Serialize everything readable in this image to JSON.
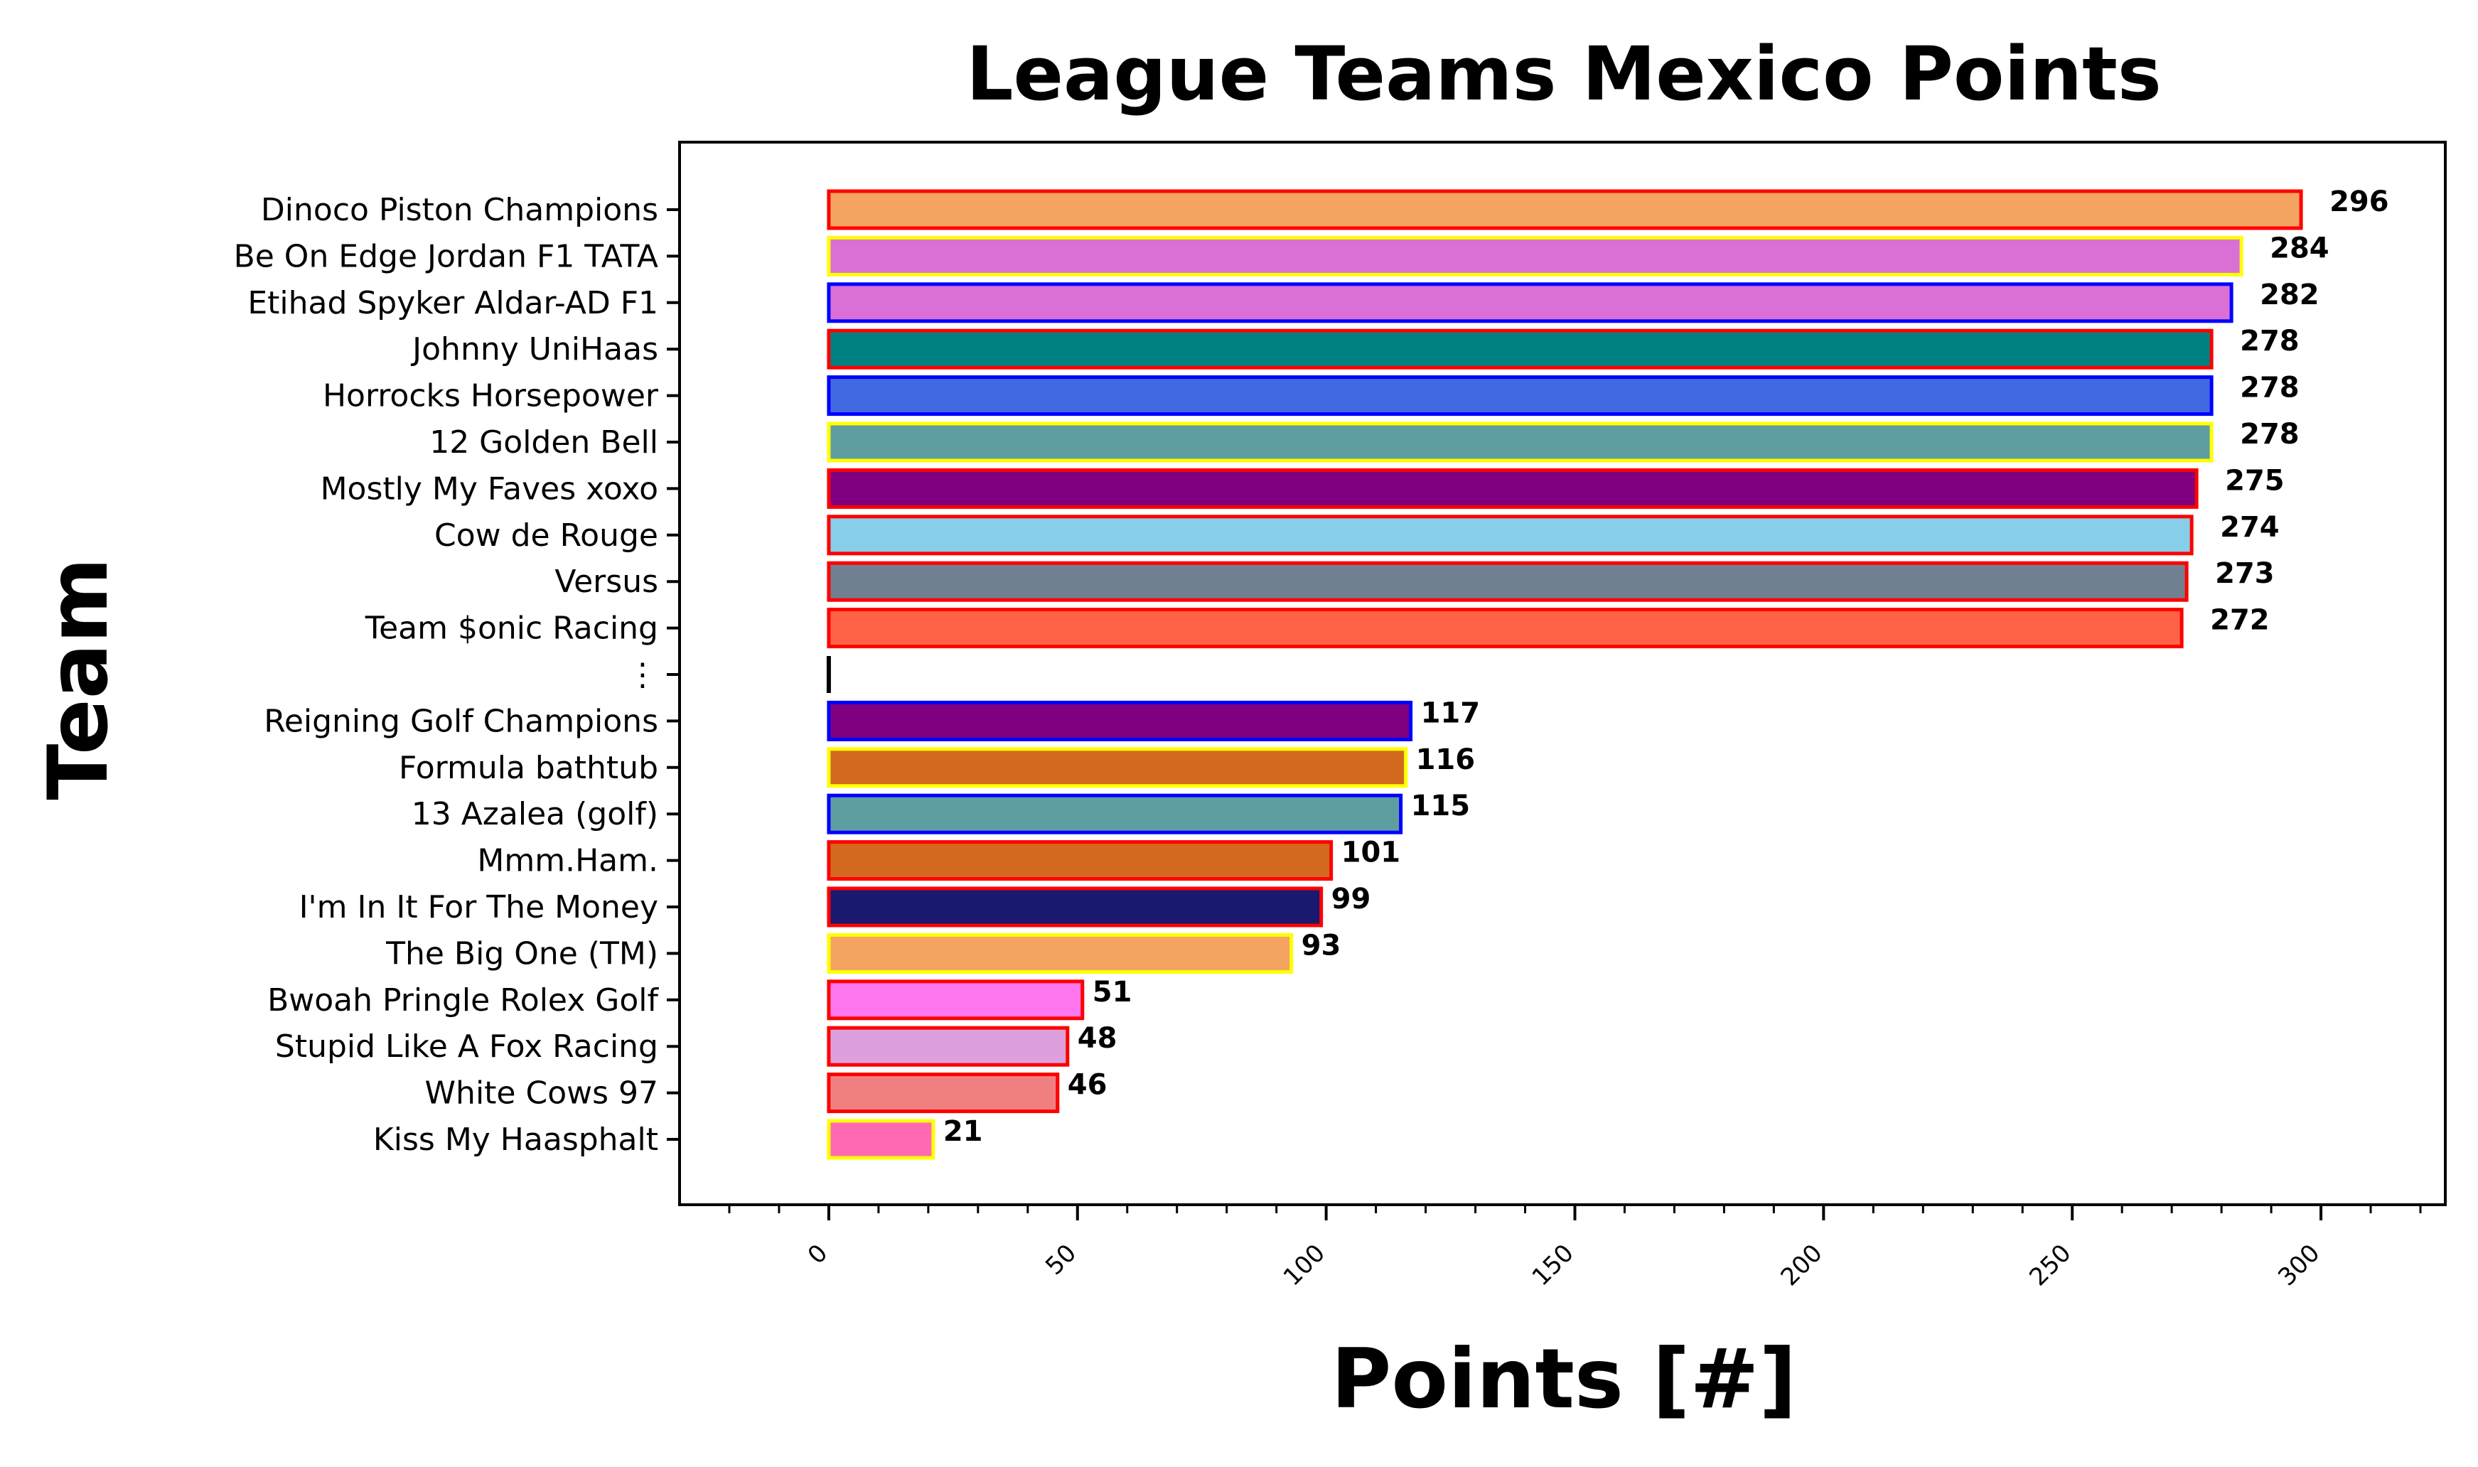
{
  "chart_data": {
    "type": "bar",
    "orientation": "horizontal",
    "title": "League Teams Mexico Points",
    "xlabel": "Points [#]",
    "ylabel": "Team",
    "xlim": [
      -30,
      325
    ],
    "xticks": [
      0,
      50,
      100,
      150,
      200,
      250,
      300
    ],
    "xtick_labels": [
      "0",
      "50",
      "100",
      "150",
      "200",
      "250",
      "300"
    ],
    "grid": false,
    "rows": [
      {
        "label": "Dinoco Piston Champions",
        "value": 296,
        "value_label": "296",
        "fill": "#F4A460",
        "edge": "#FF0000"
      },
      {
        "label": "Be On Edge Jordan F1 TATA",
        "value": 284,
        "value_label": "284",
        "fill": "#DA70D6",
        "edge": "#FFFF00"
      },
      {
        "label": "Etihad Spyker Aldar-AD F1",
        "value": 282,
        "value_label": "282",
        "fill": "#DA70D6",
        "edge": "#0000FF"
      },
      {
        "label": "Johnny UniHaas",
        "value": 278,
        "value_label": "278",
        "fill": "#008080",
        "edge": "#FF0000"
      },
      {
        "label": "Horrocks Horsepower",
        "value": 278,
        "value_label": "278",
        "fill": "#4169E1",
        "edge": "#0000FF"
      },
      {
        "label": "12 Golden Bell",
        "value": 278,
        "value_label": "278",
        "fill": "#5F9EA0",
        "edge": "#FFFF00"
      },
      {
        "label": "Mostly My Faves xoxo",
        "value": 275,
        "value_label": "275",
        "fill": "#800080",
        "edge": "#FF0000"
      },
      {
        "label": "Cow de Rouge",
        "value": 274,
        "value_label": "274",
        "fill": "#87CEEB",
        "edge": "#FF0000"
      },
      {
        "label": "Versus",
        "value": 273,
        "value_label": "273",
        "fill": "#708090",
        "edge": "#FF0000"
      },
      {
        "label": "Team $onic Racing",
        "value": 272,
        "value_label": "272",
        "fill": "#FF6347",
        "edge": "#FF0000"
      },
      {
        "label": "⋮",
        "value": 0,
        "value_label": "",
        "fill": "#000000",
        "edge": "#000000",
        "separator": true
      },
      {
        "label": "Reigning Golf Champions",
        "value": 117,
        "value_label": "117",
        "fill": "#800080",
        "edge": "#0000FF"
      },
      {
        "label": "Formula bathtub",
        "value": 116,
        "value_label": "116",
        "fill": "#D2691E",
        "edge": "#FFFF00"
      },
      {
        "label": "13 Azalea (golf)",
        "value": 115,
        "value_label": "115",
        "fill": "#5F9EA0",
        "edge": "#0000FF"
      },
      {
        "label": "Mmm.Ham.",
        "value": 101,
        "value_label": "101",
        "fill": "#D2691E",
        "edge": "#FF0000"
      },
      {
        "label": "I'm In It For The Money",
        "value": 99,
        "value_label": "99",
        "fill": "#191970",
        "edge": "#FF0000"
      },
      {
        "label": "The Big One (TM)",
        "value": 93,
        "value_label": "93",
        "fill": "#F4A460",
        "edge": "#FFFF00"
      },
      {
        "label": "Bwoah Pringle Rolex Golf",
        "value": 51,
        "value_label": "51",
        "fill": "#FF77EE",
        "edge": "#FF0000"
      },
      {
        "label": "Stupid Like A Fox Racing",
        "value": 48,
        "value_label": "48",
        "fill": "#DDA0DD",
        "edge": "#FF0000"
      },
      {
        "label": "White Cows 97",
        "value": 46,
        "value_label": "46",
        "fill": "#F08080",
        "edge": "#FF0000"
      },
      {
        "label": "Kiss My Haasphalt",
        "value": 21,
        "value_label": "21",
        "fill": "#FF69B4",
        "edge": "#FFFF00"
      }
    ]
  }
}
